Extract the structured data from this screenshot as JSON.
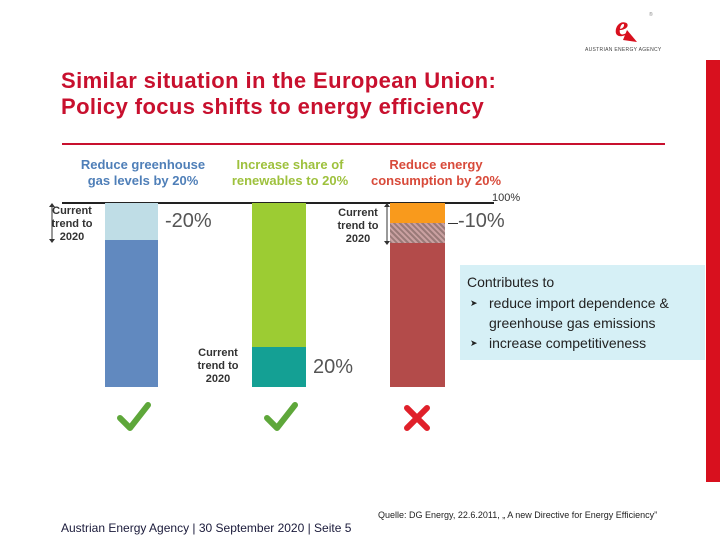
{
  "logo": {
    "letter": "e",
    "registered": "®",
    "text": "AUSTRIAN ENERGY AGENCY"
  },
  "title": {
    "line1": "Similar situation in the European Union:",
    "line2": "Policy focus shifts to energy efficiency"
  },
  "chart_data": {
    "type": "bar",
    "columns": [
      {
        "heading_line1": "Reduce greenhouse",
        "heading_line2": "gas levels by 20%",
        "heading_color": "#4f7fb8",
        "trend_label": [
          "Current",
          "trend to",
          "2020"
        ],
        "target_label": "-20%",
        "result": "check"
      },
      {
        "heading_line1": "Increase share of",
        "heading_line2": "renewables to 20%",
        "heading_color": "#9ec13d",
        "trend_label": [
          "Current",
          "trend to",
          "2020"
        ],
        "target_label": "20%",
        "result": "check"
      },
      {
        "heading_line1": "Reduce energy",
        "heading_line2": "consumption by 20%",
        "heading_color": "#d84a3a",
        "trend_label": [
          "Current",
          "trend to",
          "2020"
        ],
        "target_label": "-10%",
        "result": "cross"
      }
    ],
    "baseline_label": "100%",
    "colors": {
      "blue": "#6189bf",
      "blue_light": "#bfdde6",
      "green": "#9ccc33",
      "teal": "#14a094",
      "red": "#b34b4a",
      "orange": "#f99a1c",
      "check": "#5ea73a",
      "cross": "#e0202a"
    }
  },
  "info_box": {
    "heading": "Contributes to",
    "bullets": [
      "reduce import dependence &",
      "greenhouse gas emissions",
      "increase competitiveness"
    ],
    "bullet_glyph": "➤"
  },
  "source": "Quelle: DG Energy, 22.6.2011, „ A new Directive for Energy Efficiency”",
  "footer": "Austrian Energy Agency  | 30 September 2020 | Seite 5"
}
